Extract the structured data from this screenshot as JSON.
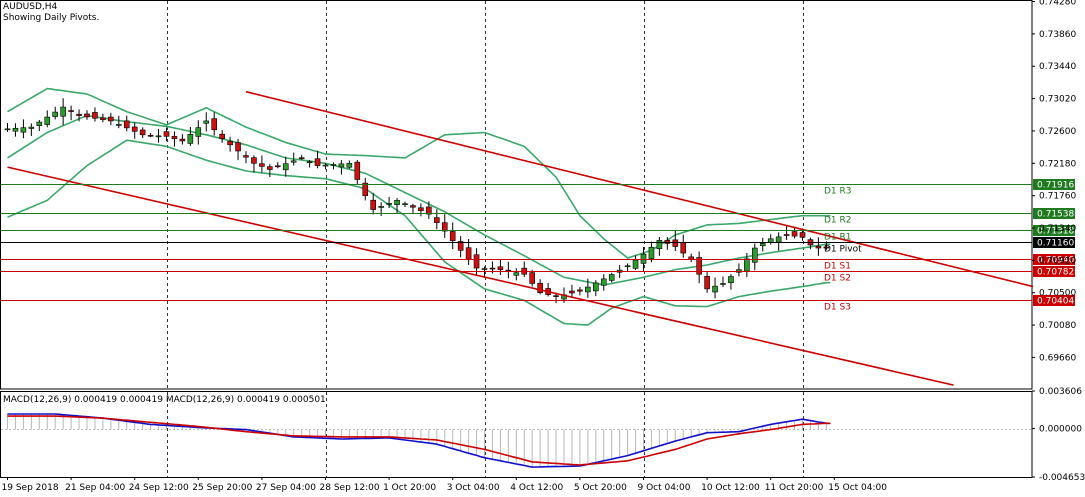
{
  "header": {
    "symbol_line": "AUDUSD,H4",
    "subtitle": "Showing Daily Pivots."
  },
  "colors": {
    "bull_candle": "#2e9a2e",
    "bear_candle": "#cc1111",
    "bollinger": "#3aa86a",
    "channel": "#cc0000",
    "pivot_resistance": "#1f7a1f",
    "pivot_support": "#cc0000",
    "pivot_line": "#000000",
    "macd_line": "#1010cc",
    "signal_line": "#cc0000",
    "histogram": "#b8b8b8"
  },
  "chart_data": [
    {
      "type": "candlestick",
      "name": "AUDUSD,H4",
      "ylim": [
        0.6925,
        0.743
      ],
      "y_ticks": [
        "0.74280",
        "0.73860",
        "0.73440",
        "0.73020",
        "0.72600",
        "0.72180",
        "0.71760",
        "0.71340",
        "0.70920",
        "0.70500",
        "0.70080",
        "0.69660"
      ],
      "y_tick_values": [
        0.7428,
        0.7386,
        0.7344,
        0.7302,
        0.726,
        0.7218,
        0.7176,
        0.7134,
        0.7092,
        0.705,
        0.7008,
        0.6966
      ],
      "x_labels": [
        "19 Sep 2018",
        "21 Sep 04:00",
        "24 Sep 12:00",
        "25 Sep 20:00",
        "27 Sep 04:00",
        "28 Sep 12:00",
        "1 Oct 20:00",
        "3 Oct 04:00",
        "4 Oct 12:00",
        "5 Oct 20:00",
        "9 Oct 04:00",
        "10 Oct 12:00",
        "11 Oct 20:00",
        "15 Oct 04:00"
      ],
      "close_path": [
        [
          0,
          0.7262
        ],
        [
          4,
          0.7265
        ],
        [
          8,
          0.7291
        ],
        [
          10,
          0.728
        ],
        [
          14,
          0.7273
        ],
        [
          18,
          0.7255
        ],
        [
          21,
          0.7253
        ],
        [
          23,
          0.7247
        ],
        [
          26,
          0.7273
        ],
        [
          28,
          0.725
        ],
        [
          32,
          0.7218
        ],
        [
          34,
          0.721
        ],
        [
          38,
          0.7225
        ],
        [
          40,
          0.7215
        ],
        [
          44,
          0.7218
        ],
        [
          46,
          0.7176
        ],
        [
          47,
          0.7158
        ],
        [
          50,
          0.717
        ],
        [
          54,
          0.7152
        ],
        [
          56,
          0.713
        ],
        [
          58,
          0.7105
        ],
        [
          60,
          0.7082
        ],
        [
          63,
          0.708
        ],
        [
          66,
          0.7074
        ],
        [
          68,
          0.705
        ],
        [
          70,
          0.7045
        ],
        [
          73,
          0.7052
        ],
        [
          76,
          0.7068
        ],
        [
          79,
          0.7085
        ],
        [
          81,
          0.71
        ],
        [
          83,
          0.7118
        ],
        [
          85,
          0.711
        ],
        [
          87,
          0.7093
        ],
        [
          89,
          0.7055
        ],
        [
          91,
          0.7062
        ],
        [
          93,
          0.708
        ],
        [
          95,
          0.7108
        ],
        [
          97,
          0.712
        ],
        [
          99,
          0.7125
        ],
        [
          101,
          0.7122
        ],
        [
          102,
          0.7112
        ],
        [
          103,
          0.7108
        ]
      ],
      "bollinger": {
        "upper": [
          [
            0,
            0.7285
          ],
          [
            5,
            0.7315
          ],
          [
            10,
            0.7308
          ],
          [
            15,
            0.7285
          ],
          [
            20,
            0.7268
          ],
          [
            25,
            0.729
          ],
          [
            30,
            0.7265
          ],
          [
            35,
            0.7245
          ],
          [
            40,
            0.723
          ],
          [
            45,
            0.7228
          ],
          [
            50,
            0.7225
          ],
          [
            55,
            0.7255
          ],
          [
            60,
            0.7258
          ],
          [
            65,
            0.724
          ],
          [
            69,
            0.72
          ],
          [
            72,
            0.715
          ],
          [
            75,
            0.712
          ],
          [
            78,
            0.7095
          ],
          [
            81,
            0.7105
          ],
          [
            84,
            0.7125
          ],
          [
            88,
            0.7138
          ],
          [
            92,
            0.714
          ],
          [
            96,
            0.7145
          ],
          [
            100,
            0.715
          ],
          [
            103,
            0.715
          ]
        ],
        "middle": [
          [
            0,
            0.7225
          ],
          [
            5,
            0.7258
          ],
          [
            10,
            0.728
          ],
          [
            15,
            0.7272
          ],
          [
            20,
            0.7266
          ],
          [
            25,
            0.7255
          ],
          [
            30,
            0.7242
          ],
          [
            35,
            0.7225
          ],
          [
            40,
            0.7218
          ],
          [
            45,
            0.7205
          ],
          [
            50,
            0.718
          ],
          [
            55,
            0.7155
          ],
          [
            60,
            0.7125
          ],
          [
            65,
            0.7098
          ],
          [
            70,
            0.707
          ],
          [
            75,
            0.706
          ],
          [
            80,
            0.707
          ],
          [
            84,
            0.708
          ],
          [
            88,
            0.7086
          ],
          [
            92,
            0.7095
          ],
          [
            96,
            0.7102
          ],
          [
            100,
            0.7108
          ],
          [
            103,
            0.7113
          ]
        ],
        "lower": [
          [
            0,
            0.7148
          ],
          [
            5,
            0.717
          ],
          [
            10,
            0.7215
          ],
          [
            15,
            0.7248
          ],
          [
            20,
            0.724
          ],
          [
            25,
            0.7222
          ],
          [
            30,
            0.7208
          ],
          [
            35,
            0.7202
          ],
          [
            40,
            0.7198
          ],
          [
            45,
            0.7185
          ],
          [
            50,
            0.715
          ],
          [
            55,
            0.709
          ],
          [
            60,
            0.7055
          ],
          [
            65,
            0.704
          ],
          [
            70,
            0.701
          ],
          [
            73,
            0.7008
          ],
          [
            76,
            0.703
          ],
          [
            80,
            0.7045
          ],
          [
            84,
            0.7033
          ],
          [
            88,
            0.7032
          ],
          [
            92,
            0.7045
          ],
          [
            96,
            0.7052
          ],
          [
            100,
            0.7058
          ],
          [
            103,
            0.7063
          ]
        ]
      },
      "channel_lines": [
        {
          "from": [
            30,
            0.7311
          ],
          "to": [
            129,
            0.7058
          ]
        },
        {
          "from": [
            0,
            0.7213
          ],
          "to": [
            119,
            0.693
          ]
        }
      ],
      "pivots": [
        {
          "label": "D1 R3",
          "value": 0.71916,
          "kind": "resistance"
        },
        {
          "label": "D1 R2",
          "value": 0.71538,
          "kind": "resistance"
        },
        {
          "label": "D1 R1",
          "value": 0.71318,
          "kind": "resistance"
        },
        {
          "label": "D1 Pivot",
          "value": 0.7116,
          "kind": "pivot"
        },
        {
          "label": "D1 S1",
          "value": 0.7094,
          "kind": "support"
        },
        {
          "label": "D1 S2",
          "value": 0.70782,
          "kind": "support"
        },
        {
          "label": "D1 S3",
          "value": 0.70404,
          "kind": "support"
        }
      ],
      "pivot_price_labels": [
        "0.71916",
        "0.71538",
        "0.71318",
        "0.71160",
        "0.70940",
        "0.70782",
        "0.70404"
      ]
    },
    {
      "type": "line",
      "name": "MACD(12,26,9) 0.000419 0.000419 MACD(12,26,9) 0.000419 0.000501",
      "ylim": [
        -0.004653,
        0.003606
      ],
      "y_ticks": [
        "0.003606",
        "0.000000",
        "-0.004653"
      ],
      "y_tick_values": [
        0.003606,
        0.0,
        -0.004653
      ],
      "series": [
        {
          "name": "MACD",
          "values": [
            [
              0,
              0.0014
            ],
            [
              6,
              0.0014
            ],
            [
              12,
              0.001
            ],
            [
              18,
              0.0004
            ],
            [
              24,
              0.0001
            ],
            [
              30,
              -0.0001
            ],
            [
              36,
              -0.0008
            ],
            [
              42,
              -0.001
            ],
            [
              48,
              -0.0009
            ],
            [
              54,
              -0.0015
            ],
            [
              60,
              -0.0028
            ],
            [
              66,
              -0.0037
            ],
            [
              72,
              -0.0036
            ],
            [
              78,
              -0.0026
            ],
            [
              84,
              -0.0012
            ],
            [
              88,
              -0.0004
            ],
            [
              92,
              -0.0003
            ],
            [
              96,
              0.0004
            ],
            [
              100,
              0.0009
            ],
            [
              103,
              0.0005
            ]
          ]
        },
        {
          "name": "Signal",
          "values": [
            [
              0,
              0.0012
            ],
            [
              6,
              0.0012
            ],
            [
              12,
              0.001
            ],
            [
              18,
              0.0006
            ],
            [
              24,
              0.0002
            ],
            [
              30,
              -0.0003
            ],
            [
              36,
              -0.0007
            ],
            [
              42,
              -0.0008
            ],
            [
              48,
              -0.0008
            ],
            [
              54,
              -0.0011
            ],
            [
              60,
              -0.002
            ],
            [
              66,
              -0.0032
            ],
            [
              72,
              -0.0035
            ],
            [
              78,
              -0.0031
            ],
            [
              84,
              -0.002
            ],
            [
              88,
              -0.001
            ],
            [
              92,
              -0.0005
            ],
            [
              96,
              -0.0001
            ],
            [
              100,
              0.0004
            ],
            [
              103,
              0.0005
            ]
          ]
        }
      ]
    }
  ]
}
